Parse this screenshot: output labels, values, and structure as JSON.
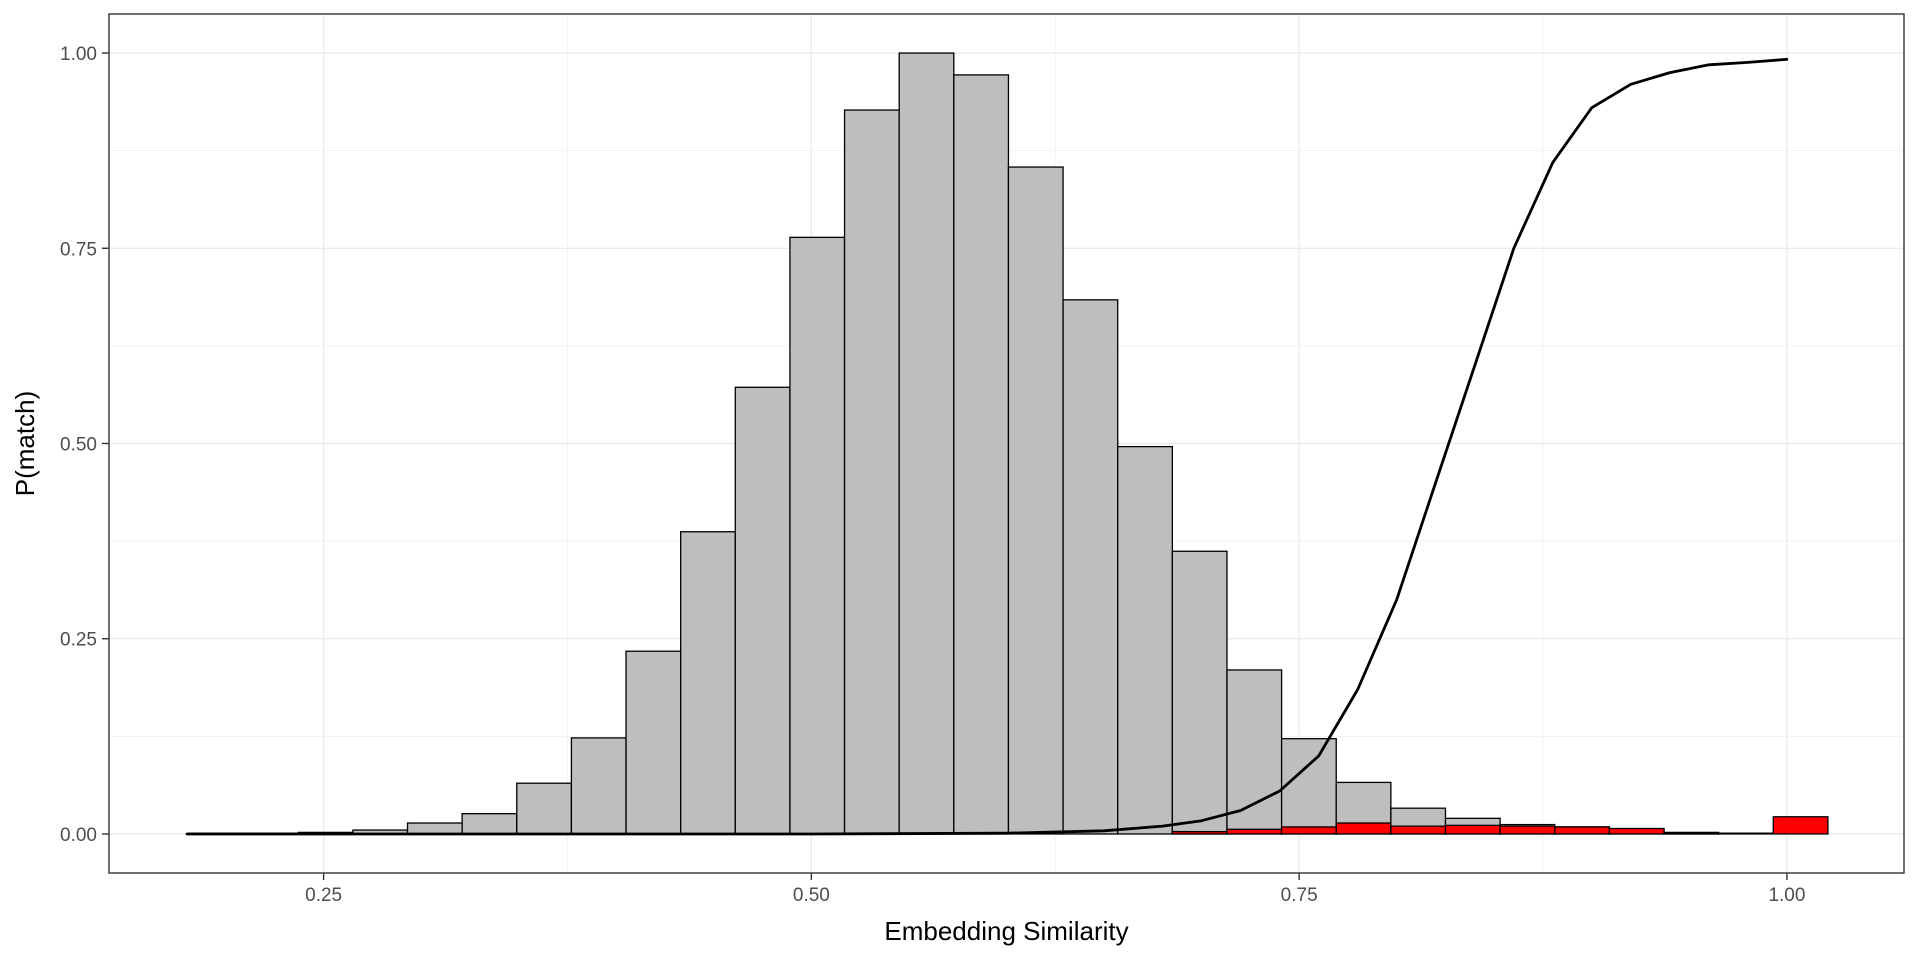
{
  "chart_data": {
    "type": "bar",
    "title": "",
    "xlabel": "Embedding Similarity",
    "ylabel": "P(match)",
    "xlim": [
      0.14,
      1.06
    ],
    "ylim": [
      -0.05,
      1.05
    ],
    "x_ticks": [
      0.25,
      0.5,
      0.75,
      1.0
    ],
    "x_tick_labels": [
      "0.25",
      "0.50",
      "0.75",
      "1.00"
    ],
    "y_ticks": [
      0.0,
      0.25,
      0.5,
      0.75,
      1.0
    ],
    "y_tick_labels": [
      "0.00",
      "0.25",
      "0.50",
      "0.75",
      "1.00"
    ],
    "grid": true,
    "bin_width": 0.028,
    "series": [
      {
        "type": "histogram",
        "fill": "#bebebe",
        "bin_centers": [
          0.195,
          0.223,
          0.251,
          0.279,
          0.307,
          0.335,
          0.363,
          0.391,
          0.419,
          0.447,
          0.475,
          0.503,
          0.531,
          0.559,
          0.587,
          0.615,
          0.643,
          0.671,
          0.699,
          0.727,
          0.755,
          0.783,
          0.811,
          0.839,
          0.867,
          0.895,
          0.923,
          0.951,
          0.979
        ],
        "values": [
          0.001,
          0.001,
          0.002,
          0.005,
          0.014,
          0.026,
          0.065,
          0.123,
          0.234,
          0.387,
          0.572,
          0.764,
          0.927,
          1.0,
          0.972,
          0.854,
          0.684,
          0.496,
          0.362,
          0.21,
          0.122,
          0.066,
          0.033,
          0.02,
          0.012,
          0.009,
          0.006,
          0.002,
          0.001
        ]
      },
      {
        "type": "histogram",
        "fill": "#ff0000",
        "bin_centers": [
          0.699,
          0.727,
          0.755,
          0.783,
          0.811,
          0.839,
          0.867,
          0.895,
          0.923,
          0.951,
          0.979,
          1.007
        ],
        "values": [
          0.003,
          0.006,
          0.009,
          0.014,
          0.01,
          0.011,
          0.01,
          0.009,
          0.007,
          0.001,
          0.0,
          0.022
        ]
      },
      {
        "type": "line",
        "color": "#000000",
        "x": [
          0.18,
          0.3,
          0.4,
          0.5,
          0.6,
          0.65,
          0.68,
          0.7,
          0.72,
          0.74,
          0.76,
          0.78,
          0.8,
          0.82,
          0.84,
          0.86,
          0.88,
          0.9,
          0.92,
          0.94,
          0.96,
          0.98,
          1.0
        ],
        "y": [
          0.0,
          0.0,
          0.0,
          0.0,
          0.001,
          0.004,
          0.01,
          0.017,
          0.03,
          0.055,
          0.1,
          0.185,
          0.3,
          0.45,
          0.6,
          0.75,
          0.86,
          0.93,
          0.96,
          0.975,
          0.985,
          0.988,
          0.992
        ]
      }
    ]
  }
}
